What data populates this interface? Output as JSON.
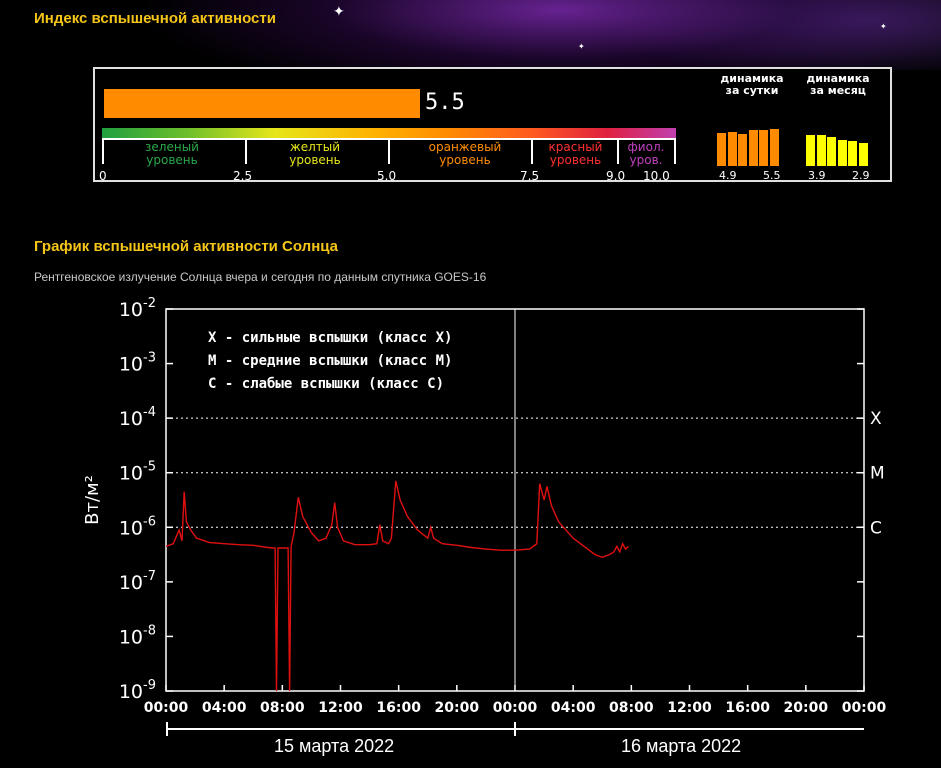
{
  "header": {
    "index_title": "Индекс вспышечной активности",
    "chart_title": "График вспышечной активности Солнца",
    "chart_subtitle": "Рентгеновское излучение Солнца вчера и сегодня по данным спутника GOES-16"
  },
  "index_panel": {
    "value": 5.5,
    "value_text": "5.5",
    "scale_max": 10,
    "levels": [
      {
        "line1": "зеленый",
        "line2": "уровень",
        "color": "#2aa84a"
      },
      {
        "line1": "желтый",
        "line2": "уровень",
        "color": "#e6e61a"
      },
      {
        "line1": "оранжевый",
        "line2": "уровень",
        "color": "#ff8c00"
      },
      {
        "line1": "красный",
        "line2": "уровень",
        "color": "#ff3030"
      },
      {
        "line1": "фиол.",
        "line2": "уров.",
        "color": "#c040c0"
      }
    ],
    "scale_ticks": [
      "0",
      "2.5",
      "5.0",
      "7.5",
      "9.0",
      "10.0"
    ],
    "daily": {
      "label1": "динамика",
      "label2": "за сутки",
      "values": [
        4.9,
        5.0,
        4.7,
        5.3,
        5.4,
        5.5
      ],
      "start": "4.9",
      "end": "5.5",
      "color": "#ff8c00"
    },
    "monthly": {
      "label1": "динамика",
      "label2": "за месяц",
      "values": [
        3.9,
        3.9,
        3.6,
        3.3,
        3.1,
        2.9
      ],
      "start": "3.9",
      "end": "2.9",
      "color": "#ffff00"
    }
  },
  "chart_data": {
    "type": "line",
    "scale": "log",
    "ylabel": "Вт/м²",
    "ylim_exp": [
      -9,
      -2
    ],
    "y_ticks": [
      "10^-2",
      "10^-3",
      "10^-4",
      "10^-5",
      "10^-6",
      "10^-7",
      "10^-8",
      "10^-9"
    ],
    "x_range_hours": [
      0,
      48
    ],
    "x_ticks": [
      "00:00",
      "04:00",
      "08:00",
      "12:00",
      "16:00",
      "20:00",
      "00:00",
      "04:00",
      "08:00",
      "12:00",
      "16:00",
      "20:00",
      "00:00"
    ],
    "class_lines": [
      {
        "label": "X",
        "exp": -4
      },
      {
        "label": "M",
        "exp": -5
      },
      {
        "label": "C",
        "exp": -6
      }
    ],
    "legend": [
      "X - сильные вспышки (класс X)",
      "M - средние вспышки (класс M)",
      "C - слабые вспышки (класс C)"
    ],
    "dates": [
      "15 марта 2022",
      "16 марта 2022"
    ],
    "line_color": "#e01010",
    "series": [
      {
        "points": [
          [
            0,
            -6.35
          ],
          [
            0.5,
            -6.3
          ],
          [
            0.9,
            -6.05
          ],
          [
            1.1,
            -6.25
          ],
          [
            1.25,
            -5.35
          ],
          [
            1.4,
            -5.9
          ],
          [
            1.7,
            -6.05
          ],
          [
            2.1,
            -6.2
          ],
          [
            3,
            -6.28
          ],
          [
            4,
            -6.3
          ],
          [
            5,
            -6.32
          ],
          [
            6,
            -6.33
          ],
          [
            7,
            -6.37
          ],
          [
            7.5,
            -6.38
          ],
          [
            7.6,
            -9.2
          ],
          [
            7.7,
            -6.38
          ],
          [
            8.4,
            -6.38
          ],
          [
            8.5,
            -9.2
          ],
          [
            8.6,
            -6.35
          ],
          [
            8.8,
            -6.1
          ],
          [
            9.1,
            -5.45
          ],
          [
            9.4,
            -5.8
          ],
          [
            10,
            -6.1
          ],
          [
            10.5,
            -6.25
          ],
          [
            11,
            -6.2
          ],
          [
            11.4,
            -5.95
          ],
          [
            11.6,
            -5.55
          ],
          [
            11.8,
            -6.0
          ],
          [
            12.2,
            -6.25
          ],
          [
            13,
            -6.32
          ],
          [
            14,
            -6.32
          ],
          [
            14.5,
            -6.3
          ],
          [
            14.7,
            -5.95
          ],
          [
            14.9,
            -6.25
          ],
          [
            15.3,
            -6.3
          ],
          [
            15.5,
            -6.2
          ],
          [
            15.8,
            -5.15
          ],
          [
            16.1,
            -5.5
          ],
          [
            16.6,
            -5.8
          ],
          [
            17.3,
            -6.05
          ],
          [
            18,
            -6.2
          ],
          [
            18.2,
            -6.0
          ],
          [
            18.4,
            -6.2
          ],
          [
            19,
            -6.3
          ],
          [
            20,
            -6.33
          ],
          [
            21,
            -6.37
          ],
          [
            22,
            -6.4
          ],
          [
            23,
            -6.42
          ],
          [
            24,
            -6.42
          ],
          [
            25,
            -6.4
          ],
          [
            25.5,
            -6.3
          ],
          [
            25.7,
            -5.2
          ],
          [
            26,
            -5.5
          ],
          [
            26.2,
            -5.25
          ],
          [
            26.5,
            -5.6
          ],
          [
            27,
            -5.9
          ],
          [
            28,
            -6.2
          ],
          [
            29,
            -6.4
          ],
          [
            29.5,
            -6.5
          ],
          [
            30,
            -6.55
          ],
          [
            30.5,
            -6.5
          ],
          [
            30.8,
            -6.45
          ],
          [
            31,
            -6.35
          ],
          [
            31.2,
            -6.45
          ],
          [
            31.4,
            -6.3
          ],
          [
            31.6,
            -6.4
          ],
          [
            31.8,
            -6.35
          ]
        ]
      }
    ]
  }
}
